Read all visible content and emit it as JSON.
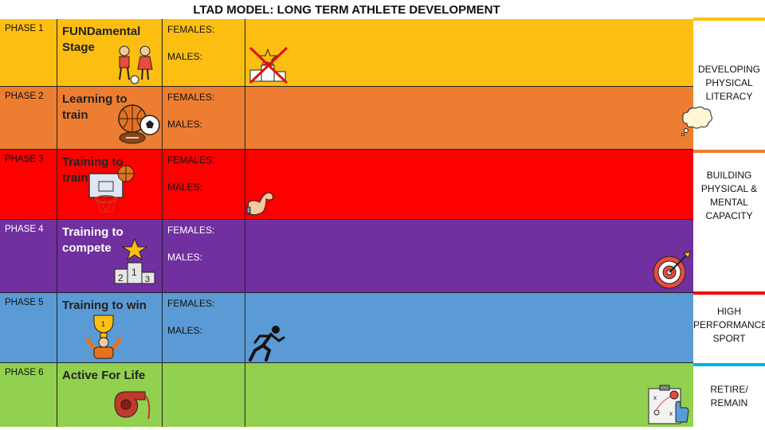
{
  "title": "LTAD MODEL: LONG TERM ATHLETE DEVELOPMENT",
  "colors": {
    "phase1": "#FDBE12",
    "phase2": "#ED7D31",
    "phase3": "#FF0000",
    "phase4": "#7030A0",
    "phase5": "#5B9BD5",
    "phase6": "#92D050",
    "line_orange": "#ED7D31",
    "line_red": "#FF0000",
    "line_blue": "#00B0F0",
    "line_yellow": "#FFC000"
  },
  "phases": [
    {
      "phase": "PHASE 1",
      "stage": "FUNDamental Stage",
      "females": "FEMALES:",
      "males": "MALES:"
    },
    {
      "phase": "PHASE 2",
      "stage": "Learning to train",
      "females": "FEMALES:",
      "males": "MALES:"
    },
    {
      "phase": "PHASE 3",
      "stage": "Training to train",
      "females": "FEMALES:",
      "males": "MALES:"
    },
    {
      "phase": "PHASE 4",
      "stage": "Training to compete",
      "females": "FEMALES:",
      "males": "MALES:"
    },
    {
      "phase": "PHASE 5",
      "stage": "Training to win",
      "females": "FEMALES:",
      "males": "MALES:"
    },
    {
      "phase": "PHASE 6",
      "stage": "Active For Life",
      "females": "",
      "males": ""
    }
  ],
  "side_labels": {
    "developing": "DEVELOPING PHYSICAL LITERACY",
    "building": "BUILDING PHYSICAL & MENTAL CAPACITY",
    "high": "HIGH PERFORMANCE SPORT",
    "retire": "RETIRE/ REMAIN"
  },
  "icons": [
    "kids-playing-icon",
    "crossed-podium-icon",
    "sports-balls-icon",
    "thought-bubble-icon",
    "basketball-hoop-icon",
    "flexed-arm-icon",
    "podium-star-icon",
    "target-icon",
    "trophy-winner-icon",
    "runner-icon",
    "whistle-icon",
    "tactics-board-icon"
  ]
}
